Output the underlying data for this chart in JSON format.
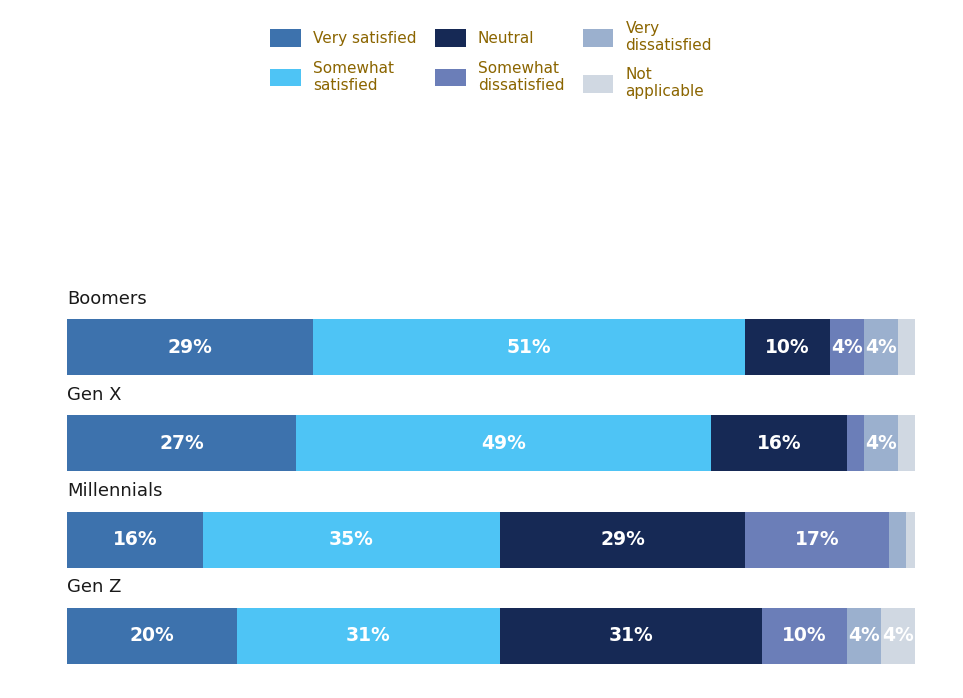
{
  "categories": [
    "Boomers",
    "Gen X",
    "Millennials",
    "Gen Z"
  ],
  "segments": [
    {
      "label": "Very satisfied",
      "color": "#3D72AD",
      "values": [
        29,
        27,
        16,
        20
      ]
    },
    {
      "label": "Somewhat\nsatisfied",
      "color": "#4EC4F5",
      "values": [
        51,
        49,
        35,
        31
      ]
    },
    {
      "label": "Neutral",
      "color": "#162955",
      "values": [
        10,
        16,
        29,
        31
      ]
    },
    {
      "label": "Somewhat\ndissatisfied",
      "color": "#6B7EB8",
      "values": [
        4,
        2,
        17,
        10
      ]
    },
    {
      "label": "Very\ndissatisfied",
      "color": "#9BB0CE",
      "values": [
        4,
        4,
        2,
        4
      ]
    },
    {
      "label": "Not\napplicable",
      "color": "#D0D8E2",
      "values": [
        2,
        2,
        2,
        4
      ]
    }
  ],
  "background_color": "#FFFFFF",
  "bar_height": 0.58,
  "label_fontsize": 13.5,
  "category_fontsize": 13,
  "legend_fontsize": 11,
  "text_color": "#FFFFFF",
  "min_label_pct": 3,
  "total": 100,
  "legend_text_color": "#8B6500"
}
